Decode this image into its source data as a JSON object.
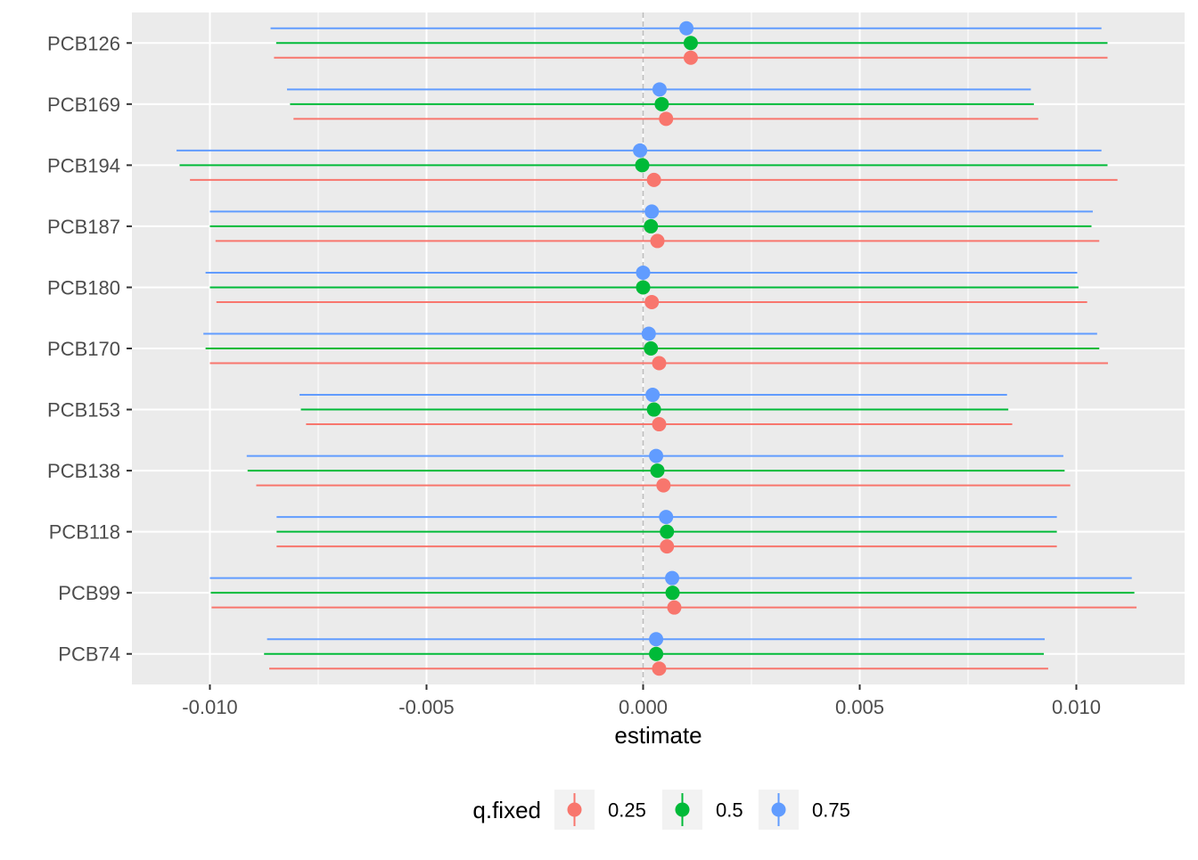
{
  "chart_data": {
    "type": "forest",
    "title": "",
    "xlabel": "estimate",
    "ylabel": "",
    "xlim": [
      -0.0118,
      0.0125
    ],
    "x_ticks": [
      -0.01,
      -0.005,
      0.0,
      0.005,
      0.01
    ],
    "x_tick_labels": [
      "-0.010",
      "-0.005",
      "0.000",
      "0.005",
      "0.010"
    ],
    "reference_line": 0,
    "grid": true,
    "legend": {
      "title": "q.fixed",
      "position": "bottom",
      "entries": [
        "0.25",
        "0.5",
        "0.75"
      ]
    },
    "categories": [
      "PCB126",
      "PCB169",
      "PCB194",
      "PCB187",
      "PCB180",
      "PCB170",
      "PCB153",
      "PCB138",
      "PCB118",
      "PCB99",
      "PCB74"
    ],
    "series": [
      {
        "name": "0.25",
        "color": "#F8766D",
        "estimate": [
          0.0011,
          0.00053,
          0.00025,
          0.00033,
          0.0002,
          0.00037,
          0.00037,
          0.00047,
          0.00055,
          0.00072,
          0.00037
        ],
        "lower": [
          -0.00852,
          -0.00807,
          -0.01046,
          -0.00987,
          -0.00985,
          -0.01,
          -0.00778,
          -0.00893,
          -0.00846,
          -0.00996,
          -0.00863
        ],
        "upper": [
          0.01072,
          0.00912,
          0.01095,
          0.01053,
          0.01025,
          0.01073,
          0.00852,
          0.00986,
          0.00955,
          0.01139,
          0.00935
        ]
      },
      {
        "name": "0.5",
        "color": "#00BA38",
        "estimate": [
          0.0011,
          0.00043,
          -2e-05,
          0.00018,
          0.0,
          0.00018,
          0.00025,
          0.00033,
          0.00055,
          0.00068,
          0.0003
        ],
        "lower": [
          -0.00847,
          -0.00815,
          -0.0107,
          -0.01,
          -0.01,
          -0.0101,
          -0.0079,
          -0.00913,
          -0.00846,
          -0.00998,
          -0.00875
        ],
        "upper": [
          0.01072,
          0.00902,
          0.01072,
          0.01035,
          0.01005,
          0.01053,
          0.00843,
          0.00973,
          0.00955,
          0.01134,
          0.00925
        ]
      },
      {
        "name": "0.75",
        "color": "#619CFF",
        "estimate": [
          0.001,
          0.00038,
          -7e-05,
          0.0002,
          0.0,
          0.00013,
          0.00022,
          0.0003,
          0.00053,
          0.00067,
          0.0003
        ],
        "lower": [
          -0.0086,
          -0.00822,
          -0.01077,
          -0.01,
          -0.0101,
          -0.01015,
          -0.00793,
          -0.00915,
          -0.00846,
          -0.01,
          -0.00868
        ],
        "upper": [
          0.01058,
          0.00895,
          0.01058,
          0.01038,
          0.01002,
          0.01048,
          0.0084,
          0.0097,
          0.00955,
          0.01128,
          0.00927
        ]
      }
    ]
  }
}
